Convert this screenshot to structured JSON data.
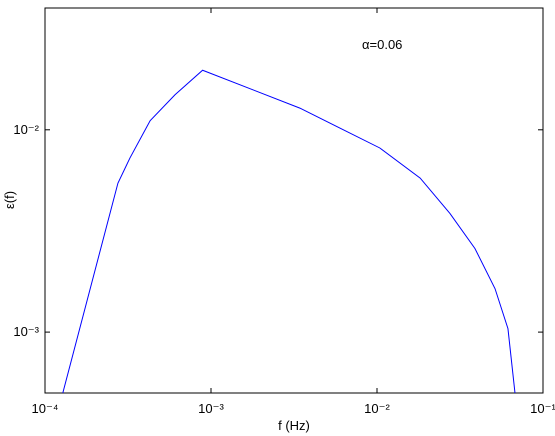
{
  "chart_data": {
    "type": "line",
    "xlabel": "f (Hz)",
    "ylabel": "ε(f)",
    "annotation": "α=0.06",
    "xlog": true,
    "ylog": true,
    "xlim": [
      0.0001,
      0.1
    ],
    "ylim": [
      0.0005,
      0.04
    ],
    "xticks": [
      {
        "value": 0.0001,
        "label": "10⁻⁴"
      },
      {
        "value": 0.001,
        "label": "10⁻³"
      },
      {
        "value": 0.01,
        "label": "10⁻²"
      },
      {
        "value": 0.1,
        "label": "10⁻¹"
      }
    ],
    "yticks": [
      {
        "value": 0.001,
        "label": "10⁻³"
      },
      {
        "value": 0.01,
        "label": "10⁻²"
      }
    ],
    "series": [
      {
        "color": "#0000ff",
        "x": [
          0.000128,
          0.000275,
          0.000325,
          0.00043,
          0.000607,
          0.00089,
          0.00343,
          0.0104,
          0.0182,
          0.0275,
          0.0389,
          0.0514,
          0.0615,
          0.0678
        ],
        "values": [
          0.0005,
          0.00545,
          0.00726,
          0.0111,
          0.0149,
          0.0197,
          0.0128,
          0.00813,
          0.00577,
          0.00386,
          0.00259,
          0.00164,
          0.00104,
          0.0005
        ]
      }
    ]
  }
}
